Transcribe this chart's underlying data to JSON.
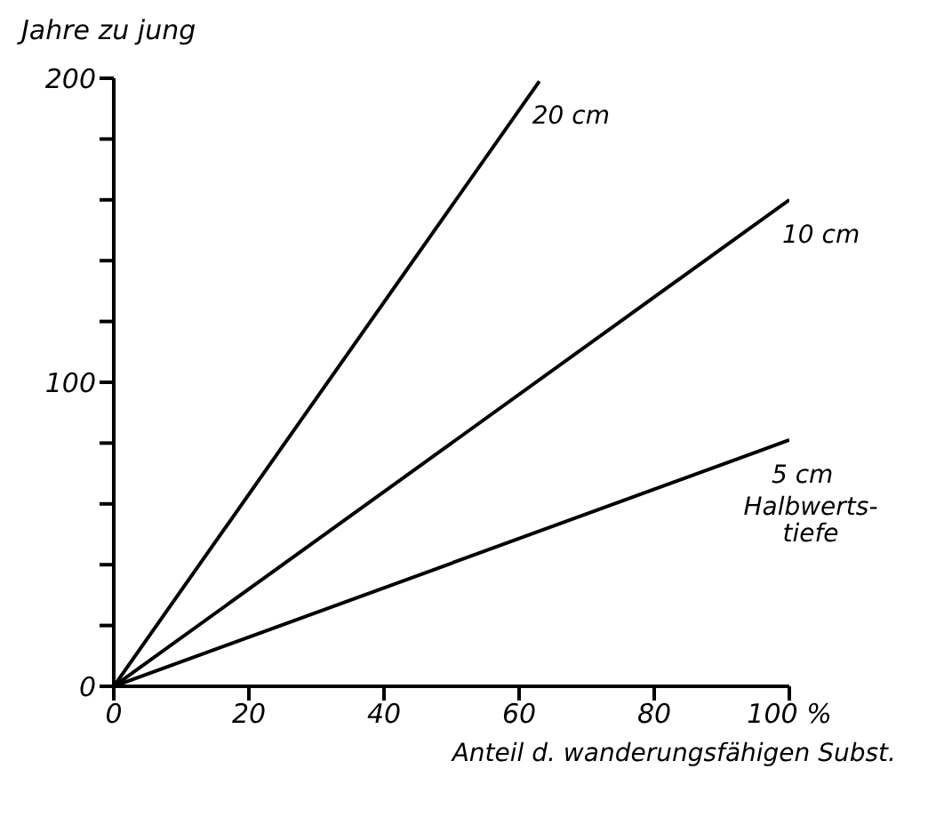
{
  "chart_data": {
    "type": "line",
    "xlabel": "Anteil  d. wanderungsfähigen Subst.",
    "ylabel": "Jahre zu jung",
    "xlim": [
      0,
      100
    ],
    "ylim": [
      0,
      200
    ],
    "xticks": [
      0,
      20,
      40,
      60,
      80,
      {
        "value": 100,
        "label": "100 %"
      }
    ],
    "yticks": [
      0,
      {
        "value": 20,
        "label": null
      },
      {
        "value": 40,
        "label": null
      },
      {
        "value": 60,
        "label": null
      },
      {
        "value": 80,
        "label": null
      },
      100,
      {
        "value": 120,
        "label": null
      },
      {
        "value": 140,
        "label": null
      },
      {
        "value": 160,
        "label": null
      },
      {
        "value": 180,
        "label": null
      },
      200
    ],
    "grid": false,
    "legend": false,
    "marker": "none",
    "line_style": "solid",
    "series": [
      {
        "name": "20 cm",
        "color": "#000000",
        "x": [
          0,
          63
        ],
        "values": [
          0,
          199
        ]
      },
      {
        "name": "10 cm",
        "color": "#000000",
        "x": [
          0,
          100
        ],
        "values": [
          0,
          160
        ]
      },
      {
        "name": "5 cm",
        "color": "#000000",
        "x": [
          0,
          100
        ],
        "values": [
          0,
          81
        ]
      }
    ],
    "annotations": [
      "Halbwerts-tiefe"
    ]
  }
}
